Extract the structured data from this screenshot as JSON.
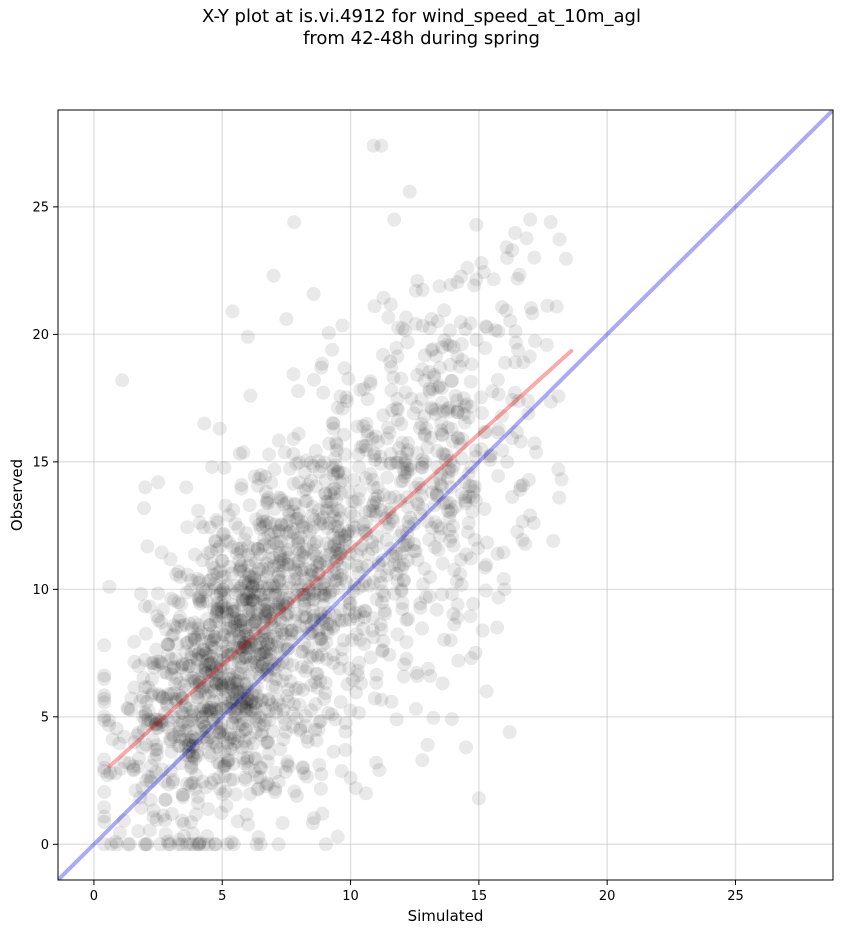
{
  "chart_data": {
    "type": "scatter",
    "title_line1": "X-Y plot at is.vi.4912 for wind_speed_at_10m_agl",
    "title_line2": "from 42-48h during spring",
    "xlabel": "Simulated",
    "ylabel": "Observed",
    "xlim": [
      -1.4,
      28.8
    ],
    "ylim": [
      -1.4,
      28.8
    ],
    "xticks": [
      0,
      5,
      10,
      15,
      20,
      25
    ],
    "yticks": [
      0,
      5,
      10,
      15,
      20,
      25
    ],
    "grid": true,
    "colors": {
      "points": "#000000",
      "identity_line": "#0000e0",
      "fit_line": "#ee0000"
    },
    "identity_line": {
      "x": [
        -1.4,
        28.8
      ],
      "y": [
        -1.4,
        28.8
      ]
    },
    "fit_line": {
      "x": [
        0.6,
        18.6
      ],
      "y": [
        3.05,
        19.35
      ]
    },
    "outlier_points": {
      "x": [
        10.9,
        11.2,
        12.3,
        11.7,
        7.8,
        14.9,
        17.0,
        17.8,
        7.0,
        1.1,
        15.1,
        12.6,
        16.3,
        16.1,
        15.0,
        9.5,
        10.6,
        10.0,
        12.8,
        4.9,
        3.6,
        4.3,
        4.6,
        5.4,
        6.0,
        7.5,
        2.0,
        2.5,
        0.6,
        15.9,
        14.5,
        18.1,
        17.9,
        17.0,
        16.6,
        16.2,
        13.0,
        15.3,
        14.7,
        16.0,
        12.6,
        11.8,
        11.0,
        10.2,
        9.8,
        6.5,
        5.2,
        4.1,
        3.3,
        1.4,
        0.9,
        2.8,
        3.5,
        5.6,
        7.2,
        8.9,
        13.9,
        14.2
      ],
      "y": [
        27.4,
        27.4,
        25.6,
        24.5,
        24.4,
        24.3,
        24.5,
        24.4,
        22.3,
        18.2,
        22.8,
        22.1,
        23.3,
        23.0,
        1.8,
        0.3,
        2.0,
        2.6,
        3.3,
        16.3,
        14.0,
        16.5,
        14.8,
        20.9,
        19.9,
        20.6,
        14.0,
        14.2,
        10.1,
        16.8,
        3.8,
        14.7,
        11.9,
        12.9,
        13.9,
        4.4,
        3.9,
        6.0,
        7.3,
        10.0,
        6.6,
        4.9,
        3.2,
        2.2,
        3.7,
        0.0,
        0.0,
        0.0,
        0.0,
        0.0,
        0.0,
        0.4,
        0.8,
        0.9,
        0.0,
        1.2,
        8.0,
        7.2
      ]
    }
  }
}
